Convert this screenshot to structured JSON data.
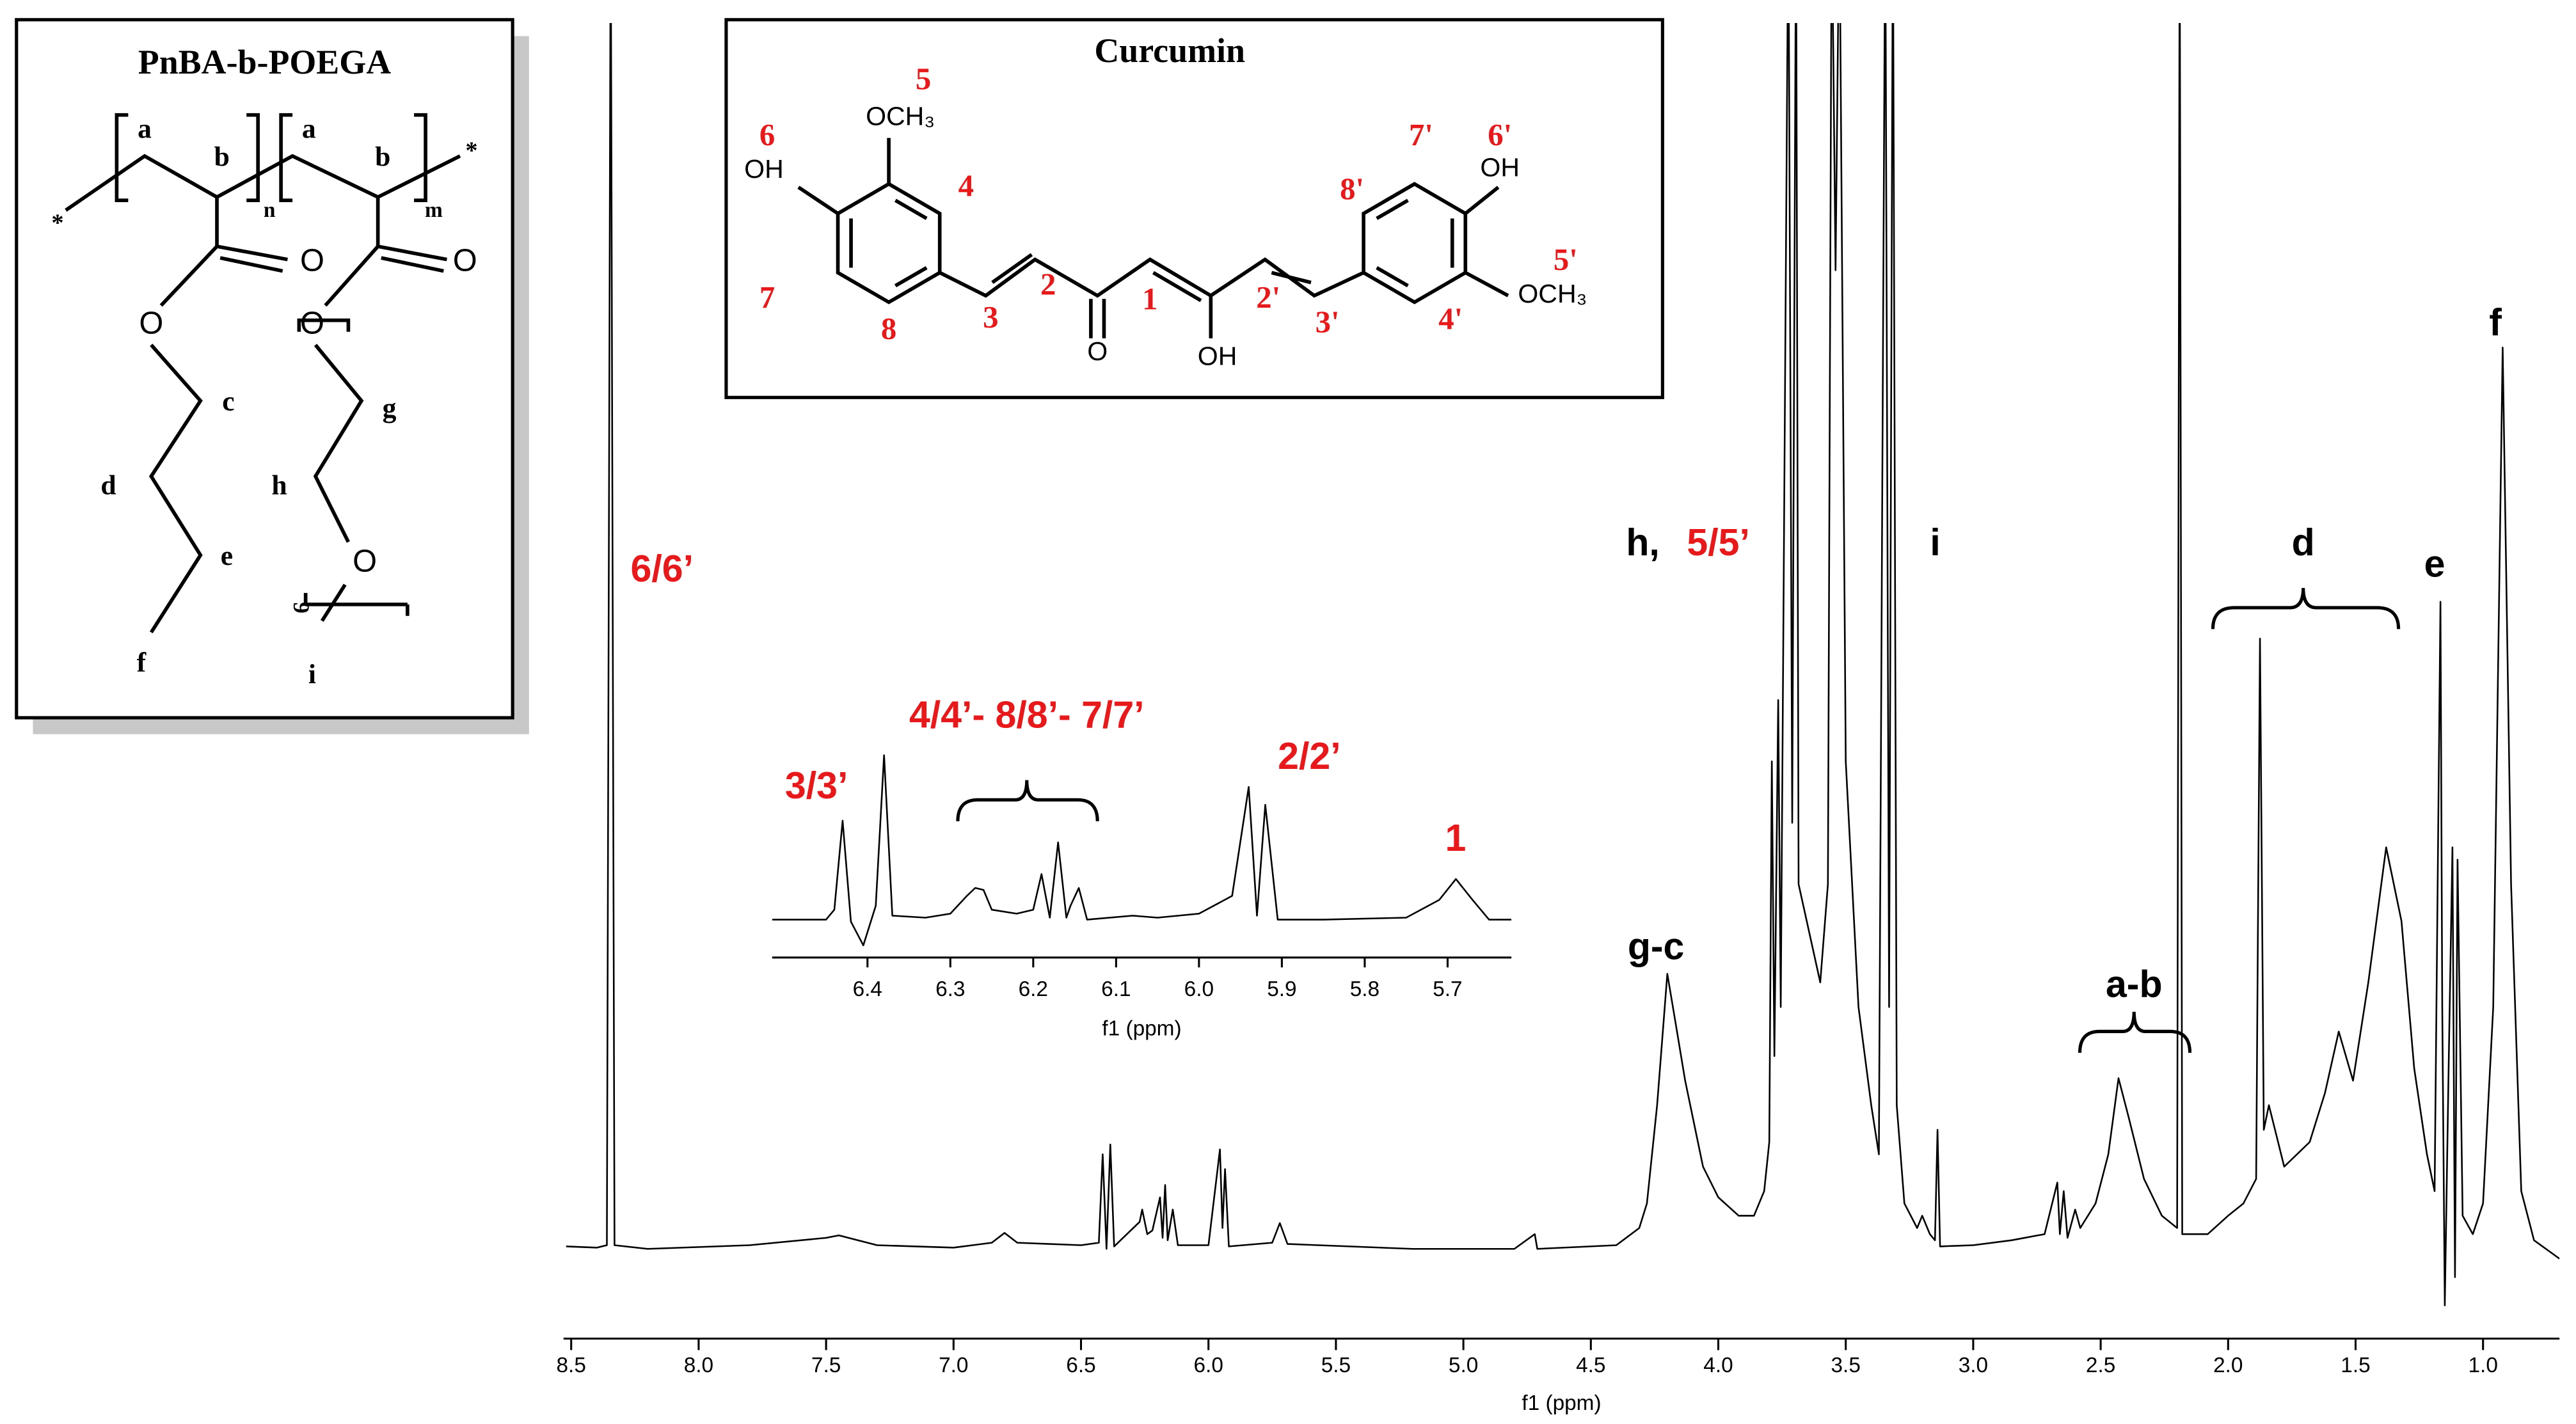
{
  "chart_data": [
    {
      "type": "line",
      "x": [
        8.52,
        8.4,
        8.36,
        8.345,
        8.33,
        8.2,
        7.8,
        7.5,
        7.45,
        7.3,
        7.0,
        6.85,
        6.8,
        6.75,
        6.5,
        6.43,
        6.415,
        6.4,
        6.385,
        6.37,
        6.27,
        6.26,
        6.24,
        6.22,
        6.19,
        6.18,
        6.17,
        6.16,
        6.14,
        6.12,
        6.0,
        5.955,
        5.945,
        5.935,
        5.92,
        5.75,
        5.72,
        5.69,
        5.2,
        4.8,
        4.72,
        4.71,
        4.4,
        4.31,
        4.28,
        4.24,
        4.2,
        4.17,
        4.13,
        4.06,
        4.0,
        3.92,
        3.86,
        3.82,
        3.8,
        3.79,
        3.78,
        3.765,
        3.755,
        3.725,
        3.71,
        3.695,
        3.685,
        3.6,
        3.57,
        3.555,
        3.54,
        3.525,
        3.5,
        3.45,
        3.4,
        3.37,
        3.345,
        3.33,
        3.315,
        3.3,
        3.27,
        3.22,
        3.2,
        3.17,
        3.15,
        3.14,
        3.13,
        3.0,
        2.85,
        2.72,
        2.67,
        2.66,
        2.645,
        2.63,
        2.6,
        2.58,
        2.52,
        2.47,
        2.43,
        2.39,
        2.33,
        2.26,
        2.2,
        2.19,
        2.18,
        2.08,
        2.0,
        1.94,
        1.89,
        1.875,
        1.86,
        1.84,
        1.78,
        1.68,
        1.62,
        1.566,
        1.51,
        1.45,
        1.38,
        1.32,
        1.27,
        1.22,
        1.19,
        1.167,
        1.16,
        1.15,
        1.135,
        1.12,
        1.11,
        1.1,
        1.08,
        1.04,
        1.0,
        0.96,
        0.923,
        0.89,
        0.85,
        0.8,
        0.7
      ],
      "series": [
        {
          "color": "#000000",
          "values": [
            0.5,
            0.4,
            0.6,
            110,
            0.6,
            0.3,
            0.6,
            1.2,
            1.4,
            0.6,
            0.4,
            0.8,
            1.6,
            0.8,
            0.6,
            0.8,
            8.0,
            0.3,
            8.8,
            0.5,
            2.5,
            3.5,
            1.5,
            1.8,
            4.5,
            1.2,
            5.5,
            1.0,
            3.5,
            0.6,
            0.6,
            8.4,
            2,
            6.8,
            0.5,
            0.8,
            2.4,
            0.7,
            0.3,
            0.3,
            1.5,
            0.3,
            0.6,
            2,
            4,
            12,
            22.7,
            19,
            14,
            7,
            4.5,
            3,
            3,
            5,
            9,
            40,
            16,
            45,
            20,
            110,
            35,
            110,
            30,
            22,
            30,
            110,
            80,
            110,
            40,
            20,
            12,
            8,
            110,
            20,
            110,
            12,
            4,
            2,
            3,
            1.5,
            1,
            10,
            0.5,
            0.6,
            1,
            1.5,
            5.7,
            1.5,
            5,
            1.2,
            3.5,
            2,
            4,
            8,
            14.2,
            11,
            6,
            3,
            2,
            110,
            1.5,
            1.5,
            3,
            4,
            6,
            50,
            10,
            12,
            7,
            9,
            13,
            18,
            14,
            22,
            33,
            27,
            15,
            8,
            5,
            53,
            20,
            -4.3,
            15,
            33,
            -2,
            32,
            3,
            1.5,
            4,
            20,
            73.7,
            30,
            5,
            1,
            -0.5
          ]
        }
      ],
      "xlim": [
        8.53,
        0.7
      ],
      "ylim": [
        -5,
        100
      ],
      "xticks": [
        8.5,
        {
          "value": 8,
          "label": "8.0"
        },
        7.5,
        {
          "value": 7,
          "label": "7.0"
        },
        6.5,
        {
          "value": 6,
          "label": "6.0"
        },
        5.5,
        {
          "value": 5,
          "label": "5.0"
        },
        4.5,
        {
          "value": 4,
          "label": "4.0"
        },
        3.5,
        {
          "value": 3,
          "label": "3.0"
        },
        2.5,
        {
          "value": 2,
          "label": "2.0"
        },
        1.5,
        {
          "value": 1,
          "label": "1.0"
        }
      ],
      "xlabel": "f1 (ppm)",
      "annotations": [
        {
          "text": "6/6’",
          "color": "#e8191b"
        },
        {
          "text": "h,",
          "color": "#000000"
        },
        {
          "text": "5/5’",
          "color": "#e8191b"
        },
        {
          "text": "i",
          "color": "#000000"
        },
        {
          "text": "d",
          "color": "#000000"
        },
        {
          "text": "e",
          "color": "#000000"
        },
        {
          "text": "f",
          "color": "#000000"
        },
        {
          "text": "g-c",
          "color": "#000000"
        },
        {
          "text": "a-b",
          "color": "#000000"
        }
      ]
    },
    {
      "type": "line",
      "x": [
        6.515,
        6.45,
        6.44,
        6.43,
        6.42,
        6.405,
        6.39,
        6.38,
        6.37,
        6.33,
        6.3,
        6.28,
        6.27,
        6.26,
        6.25,
        6.22,
        6.2,
        6.19,
        6.18,
        6.17,
        6.16,
        6.155,
        6.145,
        6.135,
        6.08,
        6.05,
        6.0,
        5.96,
        5.94,
        5.93,
        5.92,
        5.905,
        5.85,
        5.75,
        5.71,
        5.69,
        5.67,
        5.65,
        5.623
      ],
      "series": [
        {
          "color": "#000000",
          "values": [
            0.3,
            0.3,
            0.8,
            5.3,
            0.2,
            -1.0,
            1,
            8.6,
            0.5,
            0.4,
            0.6,
            1.5,
            1.9,
            1.8,
            0.8,
            0.6,
            0.8,
            2.6,
            0.4,
            4.2,
            0.4,
            1,
            1.9,
            0.3,
            0.5,
            0.4,
            0.6,
            1.5,
            7.0,
            0.5,
            6.1,
            0.3,
            0.3,
            0.4,
            1.3,
            2.35,
            1.3,
            0.3,
            0.3
          ]
        }
      ],
      "xlim": [
        6.515,
        5.623
      ],
      "ylim": [
        -1.2,
        9
      ],
      "xticks": [
        6.4,
        6.3,
        6.2,
        6.1,
        {
          "value": 6,
          "label": "6.0"
        },
        5.9,
        5.8,
        5.7
      ],
      "xlabel": "f1 (ppm)",
      "annotations": [
        {
          "text": "3/3’",
          "color": "#e8191b"
        },
        {
          "text": "4/4’- 8/8’- 7/7’",
          "color": "#e8191b"
        },
        {
          "text": "2/2’",
          "color": "#e8191b"
        },
        {
          "text": "1",
          "color": "#e8191b"
        }
      ]
    }
  ],
  "structures": {
    "polymer": {
      "title": "PnBA-b-POEGA",
      "labels": [
        "a",
        "b",
        "a",
        "b",
        "n",
        "m",
        "*",
        "*",
        "O",
        "O",
        "O",
        "O",
        "c",
        "d",
        "e",
        "f",
        "g",
        "h",
        "O",
        "9",
        "i"
      ]
    },
    "curcumin": {
      "title": "Curcumin",
      "labels": [
        "5",
        "OCH₃",
        "6",
        "OH",
        "4",
        "7",
        "8",
        "3",
        "2",
        "1",
        "O",
        "OH",
        "2'",
        "3'",
        "8'",
        "7'",
        "6'",
        "OH",
        "5'",
        "OCH₃",
        "4'"
      ]
    }
  }
}
